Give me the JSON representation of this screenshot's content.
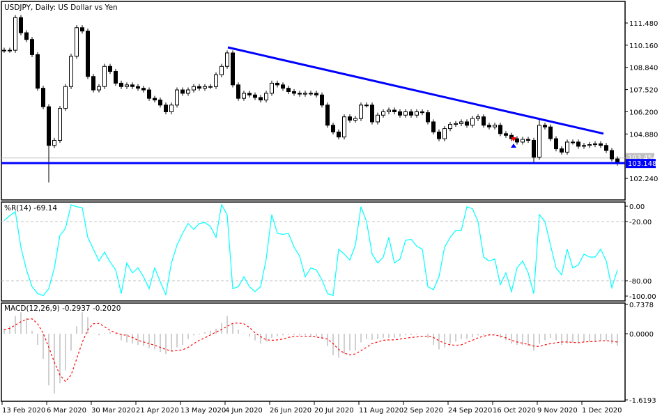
{
  "chart_data": [
    {
      "type": "candlestick",
      "title": "USDJPY, Daily:  US Dollar vs Yen",
      "symbol": "USDJPY",
      "timeframe": "Daily",
      "description": "US Dollar vs Yen",
      "x_tick_labels": [
        "13 Feb 2020",
        "6 Mar 2020",
        "30 Mar 2020",
        "21 Apr 2020",
        "13 May 2020",
        "4 Jun 2020",
        "26 Jun 2020",
        "20 Jul 2020",
        "11 Aug 2020",
        "2 Sep 2020",
        "24 Sep 2020",
        "16 Oct 2020",
        "9 Nov 2020",
        "1 Dec 2020"
      ],
      "y_tick_labels": [
        "111.480",
        "110.160",
        "108.840",
        "107.520",
        "106.200",
        "104.880",
        "102.240"
      ],
      "y_ticks": [
        111.48,
        110.16,
        108.84,
        107.52,
        106.2,
        104.88,
        102.24
      ],
      "ylim": [
        101.6,
        112.6
      ],
      "close": [
        109.86,
        109.86,
        111.8,
        110.9,
        110.5,
        109.6,
        107.6,
        106.5,
        104.2,
        104.5,
        106.4,
        107.7,
        109.5,
        111.2,
        111.0,
        108.3,
        107.5,
        107.7,
        108.9,
        108.6,
        107.9,
        107.7,
        107.8,
        107.7,
        107.6,
        107.5,
        107.0,
        106.9,
        106.6,
        106.2,
        106.6,
        107.5,
        107.3,
        107.5,
        107.7,
        107.6,
        107.7,
        107.7,
        108.4,
        108.9,
        109.7,
        107.8,
        107.0,
        107.3,
        107.2,
        107.05,
        106.9,
        107.3,
        107.9,
        107.8,
        107.6,
        107.4,
        107.3,
        107.25,
        107.3,
        107.3,
        107.2,
        106.6,
        105.4,
        105.0,
        104.7,
        105.9,
        105.7,
        105.8,
        106.6,
        106.6,
        105.6,
        106.0,
        106.2,
        106.3,
        106.2,
        106.0,
        106.2,
        106.0,
        106.2,
        106.15,
        105.6,
        105.0,
        104.6,
        105.2,
        105.45,
        105.5,
        105.6,
        105.4,
        105.8,
        105.9,
        105.4,
        105.3,
        105.4,
        104.9,
        104.8,
        104.6,
        104.4,
        104.56,
        104.5,
        103.5,
        105.4,
        105.3,
        104.6,
        104.0,
        103.8,
        104.4,
        104.4,
        104.15,
        104.2,
        104.25,
        104.3,
        104.2,
        103.9,
        103.4,
        103.15
      ],
      "trendline": {
        "start_price": 110.03,
        "end_price": 104.9,
        "color": "#0000ff"
      },
      "horizontal_line": {
        "price": 103.148,
        "label": "103.148",
        "color": "#0000ff"
      },
      "bid_line": {
        "price": 103.454,
        "label": "103.454",
        "color": "#c0c0c0"
      },
      "signal_arrows": [
        {
          "type": "sell",
          "color": "#ff0000"
        },
        {
          "type": "buy",
          "color": "#0000ff"
        }
      ],
      "bull_color": "#ffffff",
      "bear_color": "#000000"
    },
    {
      "type": "line",
      "title": "%R(14) -69.14",
      "indicator": "Williams %R",
      "period": 14,
      "last_value": -69.14,
      "ylim": [
        -104.5,
        4.4
      ],
      "y_tick_labels": [
        "0.00",
        "-20.00",
        "-80.00",
        "-100.00"
      ],
      "y_ticks": [
        0,
        -20,
        -80,
        -100
      ],
      "levels": [
        -20,
        -80
      ],
      "color": "#00ffff",
      "values": [
        -19,
        -14,
        -10,
        -46,
        -69,
        -86,
        -93,
        -95,
        -88,
        -67,
        -34,
        -27,
        -3,
        -5,
        -6,
        -36,
        -48,
        -60,
        -51,
        -61,
        -69,
        -93,
        -62,
        -72,
        -67,
        -76,
        -88,
        -67,
        -81,
        -94,
        -62,
        -44,
        -32,
        -22,
        -28,
        -22,
        -21,
        -25,
        -36,
        -3,
        -13,
        -88,
        -86,
        -76,
        -86,
        -91,
        -86,
        -58,
        -13,
        -32,
        -33,
        -32,
        -46,
        -55,
        -76,
        -67,
        -69,
        -79,
        -93,
        -95,
        -48,
        -53,
        -59,
        -44,
        -5,
        -20,
        -53,
        -62,
        -56,
        -36,
        -62,
        -58,
        -39,
        -38,
        -45,
        -48,
        -86,
        -89,
        -76,
        -46,
        -36,
        -29,
        -29,
        -5,
        -7,
        -20,
        -56,
        -60,
        -58,
        -84,
        -72,
        -91,
        -67,
        -60,
        -72,
        -93,
        -13,
        -20,
        -44,
        -67,
        -74,
        -48,
        -67,
        -64,
        -53,
        -56,
        -56,
        -48,
        -60,
        -87,
        -69.14
      ]
    },
    {
      "type": "bar+line",
      "title": "MACD(12,26,9) -0.2937 -0.2020",
      "indicator": "MACD",
      "params": [
        12,
        26,
        9
      ],
      "last_macd": -0.2937,
      "last_signal": -0.202,
      "ylim": [
        -1.6193,
        0.7378
      ],
      "y_tick_labels": [
        "0.7378",
        "0.0000",
        "-1.6193"
      ],
      "y_ticks": [
        0.7378,
        0,
        -1.6193
      ],
      "histogram_color": "#c0c0c0",
      "signal_color": "#ff0000",
      "macd": [
        0.12,
        0.18,
        0.43,
        0.52,
        0.38,
        0.07,
        -0.27,
        -0.61,
        -1.25,
        -1.45,
        -1.2,
        -0.89,
        -0.41,
        0.18,
        0.52,
        0.4,
        0.01,
        -0.04,
        0.01,
        0.04,
        -0.02,
        -0.16,
        -0.21,
        -0.24,
        -0.27,
        -0.3,
        -0.35,
        -0.38,
        -0.44,
        -0.49,
        -0.41,
        -0.33,
        -0.27,
        -0.13,
        -0.04,
        -0.02,
        0.04,
        0.07,
        0.12,
        0.26,
        0.43,
        0.26,
        0.1,
        0.01,
        -0.07,
        -0.16,
        -0.24,
        -0.19,
        -0.1,
        -0.06,
        -0.04,
        -0.02,
        -0.03,
        -0.04,
        -0.04,
        -0.07,
        -0.07,
        -0.13,
        -0.3,
        -0.52,
        -0.58,
        -0.49,
        -0.41,
        -0.41,
        -0.21,
        -0.13,
        -0.15,
        -0.13,
        -0.1,
        -0.1,
        -0.1,
        -0.07,
        -0.04,
        -0.03,
        -0.02,
        0.0,
        -0.1,
        -0.27,
        -0.38,
        -0.33,
        -0.24,
        -0.19,
        -0.13,
        -0.13,
        -0.09,
        -0.04,
        -0.03,
        -0.02,
        0.01,
        -0.1,
        -0.16,
        -0.24,
        -0.27,
        -0.27,
        -0.3,
        -0.41,
        -0.24,
        -0.16,
        -0.1,
        -0.16,
        -0.27,
        -0.24,
        -0.21,
        -0.21,
        -0.2,
        -0.2,
        -0.19,
        -0.17,
        -0.17,
        -0.24,
        -0.2937
      ],
      "signal": [
        0.1,
        0.13,
        0.21,
        0.29,
        0.35,
        0.36,
        0.24,
        0.01,
        -0.33,
        -0.69,
        -1.0,
        -1.16,
        -1.0,
        -0.61,
        -0.21,
        0.1,
        0.24,
        0.25,
        0.17,
        0.08,
        0.02,
        -0.02,
        -0.04,
        -0.09,
        -0.16,
        -0.2,
        -0.24,
        -0.28,
        -0.33,
        -0.38,
        -0.42,
        -0.41,
        -0.39,
        -0.33,
        -0.24,
        -0.16,
        -0.1,
        -0.03,
        0.04,
        0.1,
        0.18,
        0.25,
        0.26,
        0.24,
        0.15,
        0.02,
        -0.07,
        -0.15,
        -0.16,
        -0.15,
        -0.13,
        -0.09,
        -0.06,
        -0.06,
        -0.06,
        -0.06,
        -0.08,
        -0.1,
        -0.13,
        -0.24,
        -0.38,
        -0.47,
        -0.51,
        -0.49,
        -0.41,
        -0.33,
        -0.24,
        -0.2,
        -0.16,
        -0.15,
        -0.15,
        -0.13,
        -0.11,
        -0.09,
        -0.08,
        -0.06,
        -0.06,
        -0.09,
        -0.17,
        -0.23,
        -0.27,
        -0.28,
        -0.27,
        -0.21,
        -0.16,
        -0.1,
        -0.06,
        -0.03,
        -0.03,
        -0.06,
        -0.1,
        -0.16,
        -0.2,
        -0.23,
        -0.26,
        -0.3,
        -0.31,
        -0.27,
        -0.24,
        -0.22,
        -0.2,
        -0.2,
        -0.21,
        -0.22,
        -0.2,
        -0.19,
        -0.19,
        -0.17,
        -0.17,
        -0.18,
        -0.202
      ]
    }
  ]
}
